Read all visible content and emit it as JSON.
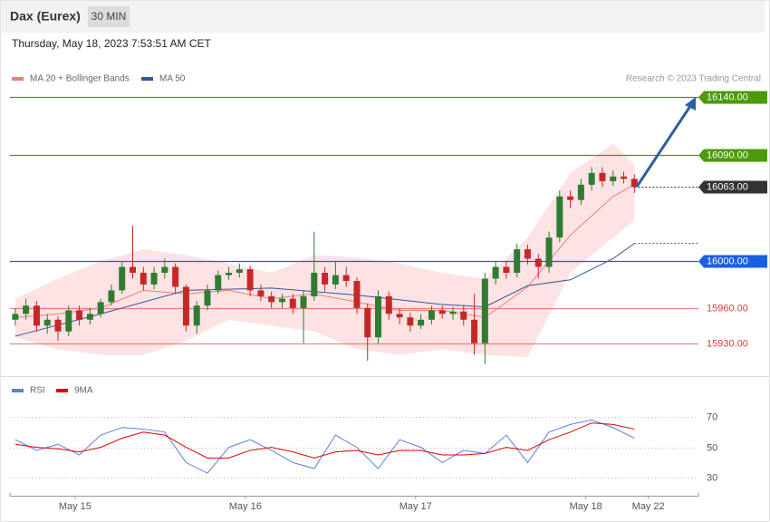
{
  "header": {
    "instrument": "Dax (Eurex)",
    "timeframe": "30 MIN",
    "datetime": "Thursday, May 18, 2023 7:53:51 AM CET"
  },
  "chart_data": [
    {
      "type": "candlestick",
      "copyright": "Research © 2023 Trading Central",
      "xlim": [
        -1,
        128
      ],
      "ylim": [
        15902,
        16149
      ],
      "x": [
        0,
        2,
        4,
        6,
        8,
        10,
        12,
        14,
        16,
        18,
        20,
        22,
        24,
        26,
        28,
        30,
        32,
        34,
        36,
        38,
        40,
        42,
        44,
        46,
        48,
        50,
        52,
        54,
        56,
        58,
        60,
        62,
        64,
        66,
        68,
        70,
        72,
        74,
        76,
        78,
        80,
        82,
        84,
        86,
        88,
        90,
        92,
        94,
        96,
        98,
        100,
        102,
        104,
        106,
        108,
        110,
        112,
        114,
        116
      ],
      "open": [
        15950,
        15955,
        15962,
        15945,
        15950,
        15940,
        15958,
        15950,
        15955,
        15965,
        15975,
        15995,
        15990,
        15980,
        15990,
        15995,
        15978,
        15945,
        15962,
        15975,
        15988,
        15990,
        15993,
        15975,
        15970,
        15965,
        15968,
        15960,
        15970,
        15990,
        15980,
        15988,
        15983,
        15960,
        15935,
        15970,
        15955,
        15952,
        15945,
        15950,
        15958,
        15955,
        15957,
        15950,
        15930,
        15985,
        15995,
        15990,
        16010,
        16002,
        15995,
        16020,
        16055,
        16052,
        16065,
        16075,
        16068,
        16072,
        16070
      ],
      "high": [
        15960,
        15968,
        15966,
        15955,
        15953,
        15962,
        15962,
        15960,
        15968,
        15980,
        16000,
        16030,
        15995,
        15995,
        16002,
        15998,
        15980,
        15966,
        15980,
        15992,
        15995,
        15998,
        15996,
        15980,
        15974,
        15972,
        15972,
        15975,
        16025,
        15995,
        16000,
        15995,
        15986,
        15964,
        15975,
        15974,
        15960,
        15956,
        15955,
        15962,
        15962,
        15961,
        15962,
        15972,
        15990,
        16000,
        16000,
        16015,
        16014,
        16006,
        16025,
        16060,
        16060,
        16070,
        16080,
        16080,
        16077,
        16076,
        16074
      ],
      "low": [
        15945,
        15950,
        15940,
        15938,
        15932,
        15936,
        15945,
        15946,
        15952,
        15962,
        15972,
        15985,
        15975,
        15976,
        15985,
        15972,
        15940,
        15938,
        15958,
        15972,
        15984,
        15986,
        15970,
        15966,
        15960,
        15960,
        15955,
        15930,
        15966,
        15974,
        15976,
        15978,
        15955,
        15915,
        15930,
        15950,
        15946,
        15940,
        15942,
        15946,
        15951,
        15950,
        15945,
        15920,
        15912,
        15980,
        15985,
        15986,
        15997,
        15985,
        15990,
        16016,
        16045,
        16048,
        16060,
        16063,
        16064,
        16066,
        16058
      ],
      "close": [
        15955,
        15962,
        15945,
        15950,
        15940,
        15958,
        15950,
        15955,
        15965,
        15975,
        15995,
        15990,
        15980,
        15990,
        15995,
        15978,
        15945,
        15962,
        15975,
        15988,
        15990,
        15993,
        15975,
        15970,
        15965,
        15968,
        15960,
        15970,
        15990,
        15980,
        15988,
        15983,
        15960,
        15935,
        15970,
        15955,
        15952,
        15945,
        15950,
        15958,
        15955,
        15957,
        15950,
        15930,
        15985,
        15995,
        15990,
        16010,
        16002,
        15995,
        16020,
        16055,
        16052,
        16065,
        16075,
        16068,
        16072,
        16070,
        16063
      ],
      "up_color": "#2e7d32",
      "down_color": "#c62828",
      "band_color": "#fde3e3",
      "series": [
        {
          "name": "MA 20 + Bollinger Bands",
          "color": "#f37b7b",
          "x": [
            0,
            8,
            16,
            24,
            32,
            40,
            48,
            56,
            64,
            72,
            80,
            88,
            96,
            104,
            112,
            116
          ],
          "values": [
            15952,
            15955,
            15960,
            15975,
            15972,
            15975,
            15968,
            15972,
            15965,
            15958,
            15958,
            15952,
            15978,
            16022,
            16055,
            16065
          ],
          "upper": [
            15968,
            15985,
            16000,
            16010,
            16005,
            15998,
            15990,
            16005,
            16003,
            15998,
            15990,
            15985,
            16020,
            16075,
            16100,
            16082
          ],
          "lower": [
            15935,
            15925,
            15920,
            15920,
            15932,
            15950,
            15945,
            15940,
            15925,
            15920,
            15925,
            15920,
            15918,
            15990,
            16020,
            16035
          ]
        },
        {
          "name": "MA 50",
          "color": "#33569a",
          "x": [
            0,
            16,
            32,
            48,
            64,
            80,
            88,
            96,
            104,
            112,
            116
          ],
          "values": [
            15936,
            15955,
            15975,
            15977,
            15971,
            15963,
            15961,
            15979,
            15984,
            16002,
            16015
          ]
        }
      ],
      "levels": [
        {
          "value": 16140,
          "label": "16140.00",
          "color": "#4a9a0a",
          "boxed": true,
          "dotted": false
        },
        {
          "value": 16090,
          "label": "16090.00",
          "color": "#4a9a0a",
          "boxed": true,
          "dotted": false
        },
        {
          "value": 16063,
          "label": "16063.00",
          "color": "#333333",
          "boxed": true,
          "dotted": true
        },
        {
          "value": 16000,
          "label": "16000.00",
          "color": "#1a5fe0",
          "boxed": true,
          "dotted": false
        },
        {
          "value": 15960,
          "label": "15960.00",
          "color": "#e53935",
          "boxed": false,
          "dotted": false
        },
        {
          "value": 15930,
          "label": "15930.00",
          "color": "#e53935",
          "boxed": false,
          "dotted": false
        }
      ]
    },
    {
      "type": "line",
      "xlim": [
        -1,
        128
      ],
      "ylim": [
        20,
        95
      ],
      "yticks": [
        70,
        50,
        30
      ],
      "grid": true,
      "xticks": [
        {
          "value": 11.2,
          "label": "May 15"
        },
        {
          "value": 43.1,
          "label": "May 16"
        },
        {
          "value": 75,
          "label": "May 17"
        },
        {
          "value": 106.9,
          "label": "May 18"
        },
        {
          "value": 118.6,
          "label": "May 22"
        }
      ],
      "x": [
        0,
        4,
        8,
        12,
        16,
        20,
        24,
        28,
        32,
        36,
        40,
        44,
        48,
        52,
        56,
        60,
        64,
        68,
        72,
        76,
        80,
        84,
        88,
        92,
        96,
        100,
        104,
        108,
        112,
        116
      ],
      "series": [
        {
          "name": "RSI",
          "color": "#5b7fdc",
          "values": [
            55,
            48,
            52,
            45,
            58,
            63,
            62,
            60,
            40,
            33,
            50,
            55,
            48,
            40,
            36,
            58,
            50,
            36,
            55,
            50,
            40,
            48,
            46,
            58,
            40,
            60,
            65,
            68,
            63,
            56
          ]
        },
        {
          "name": "9MA",
          "color": "#e00000",
          "values": [
            52,
            50,
            49,
            47,
            50,
            56,
            60,
            58,
            50,
            43,
            43,
            48,
            50,
            47,
            43,
            47,
            48,
            45,
            48,
            48,
            45,
            45,
            46,
            50,
            48,
            55,
            60,
            66,
            65,
            62
          ]
        }
      ]
    }
  ]
}
